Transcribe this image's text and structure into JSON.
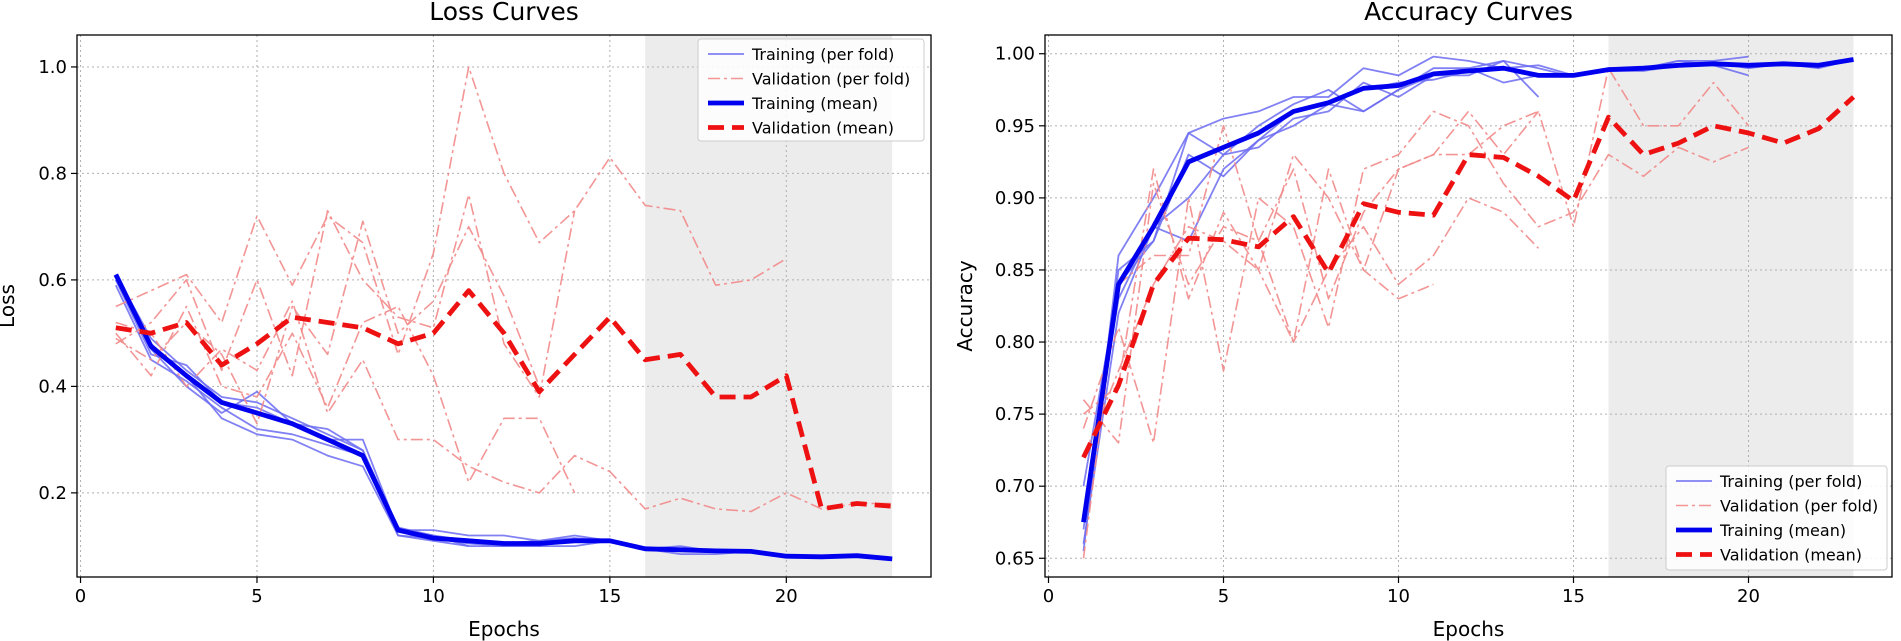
{
  "chart_data": [
    {
      "type": "line",
      "title": "Loss Curves",
      "xlabel": "Epochs",
      "ylabel": "Loss",
      "xlim": [
        -0.1,
        24.1
      ],
      "ylim": [
        0.042,
        1.06
      ],
      "xticks": [
        0,
        5,
        10,
        15,
        20
      ],
      "yticks": [
        0.2,
        0.4,
        0.6,
        0.8,
        1.0
      ],
      "ytick_format": 1,
      "grid": true,
      "legend_position": "top-right",
      "shaded_region": {
        "x": [
          16,
          23
        ],
        "color": "#ececec"
      },
      "legend": [
        "Training (per fold)",
        "Validation (per fold)",
        "Training (mean)",
        "Validation (mean)"
      ],
      "series": [
        {
          "group": "train-fold",
          "x": [
            1,
            2,
            3,
            4,
            5,
            6,
            7,
            8,
            9,
            10,
            11,
            12,
            13,
            14
          ],
          "y": [
            0.6,
            0.48,
            0.42,
            0.34,
            0.31,
            0.3,
            0.27,
            0.25,
            0.12,
            0.115,
            0.105,
            0.1,
            0.1,
            0.115
          ]
        },
        {
          "group": "train-fold",
          "x": [
            1,
            2,
            3,
            4,
            5,
            6,
            7,
            8,
            9,
            10,
            11,
            12,
            13,
            14,
            15,
            16,
            17,
            18,
            19,
            20,
            21,
            22,
            23
          ],
          "y": [
            0.61,
            0.47,
            0.4,
            0.35,
            0.39,
            0.33,
            0.3,
            0.3,
            0.13,
            0.13,
            0.12,
            0.12,
            0.11,
            0.115,
            0.11,
            0.095,
            0.085,
            0.085,
            0.09,
            0.08,
            0.08,
            0.08,
            0.075
          ]
        },
        {
          "group": "train-fold",
          "x": [
            1,
            2,
            3,
            4,
            5,
            6,
            7,
            8,
            9,
            10,
            11,
            12,
            13,
            14,
            15
          ],
          "y": [
            0.59,
            0.45,
            0.41,
            0.36,
            0.32,
            0.31,
            0.29,
            0.27,
            0.13,
            0.12,
            0.1,
            0.1,
            0.1,
            0.1,
            0.11
          ]
        },
        {
          "group": "train-fold",
          "x": [
            1,
            2,
            3,
            4,
            5,
            6,
            7,
            8,
            9,
            10,
            11,
            12,
            13,
            14,
            15,
            16,
            17,
            18,
            19
          ],
          "y": [
            0.6,
            0.46,
            0.44,
            0.37,
            0.36,
            0.33,
            0.32,
            0.28,
            0.135,
            0.12,
            0.11,
            0.105,
            0.11,
            0.12,
            0.11,
            0.095,
            0.1,
            0.09,
            0.09
          ]
        },
        {
          "group": "train-fold",
          "x": [
            1,
            2,
            3,
            4,
            5,
            6,
            7,
            8,
            9,
            10,
            11
          ],
          "y": [
            0.61,
            0.49,
            0.43,
            0.38,
            0.37,
            0.34,
            0.31,
            0.28,
            0.12,
            0.11,
            0.1
          ]
        },
        {
          "group": "val-fold",
          "x": [
            1,
            2,
            3,
            4,
            5,
            6,
            7,
            8,
            9,
            10,
            11,
            12,
            13,
            14,
            15,
            16,
            17,
            18,
            19,
            20
          ],
          "y": [
            0.55,
            0.58,
            0.61,
            0.52,
            0.72,
            0.59,
            0.72,
            0.67,
            0.46,
            0.65,
            1.0,
            0.8,
            0.67,
            0.73,
            0.83,
            0.74,
            0.73,
            0.59,
            0.6,
            0.64
          ]
        },
        {
          "group": "val-fold",
          "x": [
            1,
            2,
            3,
            4,
            5,
            6,
            7,
            8,
            9,
            10,
            11,
            12,
            13,
            14
          ],
          "y": [
            0.48,
            0.52,
            0.6,
            0.43,
            0.6,
            0.42,
            0.73,
            0.6,
            0.53,
            0.51,
            0.76,
            0.48,
            0.38,
            0.73
          ]
        },
        {
          "group": "val-fold",
          "x": [
            1,
            2,
            3,
            4,
            5,
            6,
            7,
            8,
            9,
            10,
            11,
            12,
            13,
            14,
            15,
            16,
            17,
            18,
            19,
            20,
            21,
            22,
            23
          ],
          "y": [
            0.52,
            0.5,
            0.4,
            0.47,
            0.43,
            0.56,
            0.35,
            0.45,
            0.3,
            0.3,
            0.25,
            0.22,
            0.2,
            0.27,
            0.24,
            0.17,
            0.19,
            0.17,
            0.165,
            0.2,
            0.17,
            0.18,
            0.18
          ]
        },
        {
          "group": "val-fold",
          "x": [
            1,
            2,
            3,
            4,
            5,
            6,
            7,
            8,
            9,
            10,
            11,
            12,
            13,
            14
          ],
          "y": [
            0.5,
            0.42,
            0.55,
            0.4,
            0.38,
            0.5,
            0.36,
            0.52,
            0.55,
            0.42,
            0.22,
            0.34,
            0.34,
            0.2
          ]
        },
        {
          "group": "val-fold",
          "x": [
            1,
            2,
            3,
            4,
            5,
            6,
            7,
            8,
            9,
            10,
            11,
            12,
            13
          ],
          "y": [
            0.49,
            0.45,
            0.52,
            0.46,
            0.33,
            0.55,
            0.46,
            0.71,
            0.5,
            0.56,
            0.7,
            0.57,
            0.4
          ]
        },
        {
          "group": "train-mean",
          "x": [
            1,
            2,
            3,
            4,
            5,
            6,
            7,
            8,
            9,
            10,
            11,
            12,
            13,
            14,
            15,
            16,
            17,
            18,
            19,
            20,
            21,
            22,
            23
          ],
          "y": [
            0.61,
            0.475,
            0.42,
            0.37,
            0.35,
            0.33,
            0.3,
            0.27,
            0.13,
            0.115,
            0.11,
            0.105,
            0.105,
            0.11,
            0.11,
            0.095,
            0.093,
            0.091,
            0.09,
            0.081,
            0.08,
            0.082,
            0.076
          ]
        },
        {
          "group": "val-mean",
          "x": [
            1,
            2,
            3,
            4,
            5,
            6,
            7,
            8,
            9,
            10,
            11,
            12,
            13,
            14,
            15,
            16,
            17,
            18,
            19,
            20,
            21,
            22,
            23
          ],
          "y": [
            0.51,
            0.5,
            0.52,
            0.44,
            0.48,
            0.53,
            0.52,
            0.51,
            0.48,
            0.5,
            0.58,
            0.5,
            0.39,
            0.46,
            0.53,
            0.45,
            0.46,
            0.38,
            0.38,
            0.42,
            0.17,
            0.18,
            0.175
          ]
        }
      ]
    },
    {
      "type": "line",
      "title": "Accuracy Curves",
      "xlabel": "Epochs",
      "ylabel": "Accuracy",
      "xlim": [
        -0.1,
        24.1
      ],
      "ylim": [
        0.637,
        1.013
      ],
      "xticks": [
        0,
        5,
        10,
        15,
        20
      ],
      "yticks": [
        0.65,
        0.7,
        0.75,
        0.8,
        0.85,
        0.9,
        0.95,
        1.0
      ],
      "ytick_format": 2,
      "grid": true,
      "legend_position": "bottom-right",
      "shaded_region": {
        "x": [
          16,
          23
        ],
        "color": "#ececec"
      },
      "legend": [
        "Training (per fold)",
        "Validation (per fold)",
        "Training (mean)",
        "Validation (mean)"
      ],
      "series": [
        {
          "group": "train-fold",
          "x": [
            1,
            2,
            3,
            4,
            5,
            6,
            7,
            8,
            9,
            10,
            11,
            12,
            13,
            14,
            15,
            16,
            17,
            18,
            19,
            20
          ],
          "y": [
            0.655,
            0.86,
            0.9,
            0.945,
            0.955,
            0.96,
            0.97,
            0.97,
            0.99,
            0.985,
            0.998,
            0.995,
            0.99,
            0.992,
            0.985,
            0.99,
            0.99,
            0.995,
            0.995,
            0.998
          ]
        },
        {
          "group": "train-fold",
          "x": [
            1,
            2,
            3,
            4,
            5,
            6,
            7,
            8,
            9,
            10,
            11,
            12,
            13,
            14
          ],
          "y": [
            0.68,
            0.83,
            0.88,
            0.9,
            0.93,
            0.95,
            0.965,
            0.975,
            0.96,
            0.975,
            0.985,
            0.99,
            0.995,
            0.97
          ]
        },
        {
          "group": "train-fold",
          "x": [
            1,
            2,
            3,
            4,
            5,
            6,
            7,
            8,
            9,
            10,
            11,
            12,
            13,
            14,
            15,
            16,
            17,
            18,
            19,
            20,
            21,
            22,
            23
          ],
          "y": [
            0.7,
            0.84,
            0.87,
            0.93,
            0.915,
            0.94,
            0.96,
            0.965,
            0.975,
            0.98,
            0.982,
            0.988,
            0.99,
            0.985,
            0.985,
            0.988,
            0.988,
            0.992,
            0.994,
            0.99,
            0.993,
            0.99,
            0.996
          ]
        },
        {
          "group": "train-fold",
          "x": [
            1,
            2,
            3,
            4,
            5,
            6,
            7,
            8,
            9,
            10,
            11,
            12,
            13,
            14,
            15
          ],
          "y": [
            0.67,
            0.85,
            0.87,
            0.945,
            0.93,
            0.935,
            0.955,
            0.96,
            0.98,
            0.97,
            0.985,
            0.985,
            0.995,
            0.99,
            0.984
          ]
        },
        {
          "group": "train-fold",
          "x": [
            1,
            2,
            3,
            4,
            5,
            6,
            7,
            8,
            9,
            10,
            11,
            12,
            13,
            14,
            15,
            16,
            17,
            18,
            19,
            20
          ],
          "y": [
            0.66,
            0.82,
            0.88,
            0.87,
            0.92,
            0.94,
            0.95,
            0.965,
            0.96,
            0.975,
            0.99,
            0.99,
            0.98,
            0.985,
            0.985,
            0.99,
            0.99,
            0.995,
            0.992,
            0.985
          ]
        },
        {
          "group": "val-fold",
          "x": [
            1,
            2,
            3,
            4,
            5,
            6,
            7,
            8,
            9,
            10,
            11
          ],
          "y": [
            0.75,
            0.77,
            0.92,
            0.83,
            0.89,
            0.85,
            0.8,
            0.92,
            0.85,
            0.83,
            0.84
          ]
        },
        {
          "group": "val-fold",
          "x": [
            1,
            2,
            3,
            4,
            5,
            6,
            7,
            8,
            9,
            10,
            11,
            12,
            13,
            14,
            15,
            16,
            17,
            18,
            19,
            20
          ],
          "y": [
            0.76,
            0.73,
            0.91,
            0.84,
            0.88,
            0.87,
            0.92,
            0.83,
            0.89,
            0.92,
            0.93,
            0.93,
            0.95,
            0.96,
            0.88,
            0.99,
            0.95,
            0.95,
            0.98,
            0.95
          ]
        },
        {
          "group": "val-fold",
          "x": [
            1,
            2,
            3,
            4,
            5,
            6,
            7,
            8,
            9,
            10,
            11,
            12,
            13,
            14,
            15,
            16,
            17,
            18,
            19,
            20
          ],
          "y": [
            0.74,
            0.81,
            0.73,
            0.9,
            0.78,
            0.9,
            0.88,
            0.81,
            0.92,
            0.93,
            0.96,
            0.95,
            0.91,
            0.88,
            0.89,
            0.93,
            0.915,
            0.935,
            0.925,
            0.935
          ]
        },
        {
          "group": "val-fold",
          "x": [
            1,
            2,
            3,
            4,
            5,
            6,
            7,
            8,
            9,
            10,
            11,
            12,
            13,
            14
          ],
          "y": [
            0.65,
            0.84,
            0.86,
            0.86,
            0.95,
            0.87,
            0.8,
            0.85,
            0.88,
            0.84,
            0.86,
            0.9,
            0.89,
            0.865
          ]
        },
        {
          "group": "val-fold",
          "x": [
            1,
            2,
            3,
            4,
            5,
            6,
            7,
            8,
            9,
            10,
            11,
            12,
            13,
            14
          ],
          "y": [
            0.72,
            0.78,
            0.84,
            0.88,
            0.87,
            0.85,
            0.93,
            0.9,
            0.85,
            0.92,
            0.93,
            0.96,
            0.93,
            0.96
          ]
        },
        {
          "group": "train-mean",
          "x": [
            1,
            2,
            3,
            4,
            5,
            6,
            7,
            8,
            9,
            10,
            11,
            12,
            13,
            14,
            15,
            16,
            17,
            18,
            19,
            20,
            21,
            22,
            23
          ],
          "y": [
            0.675,
            0.84,
            0.88,
            0.925,
            0.935,
            0.945,
            0.96,
            0.966,
            0.976,
            0.978,
            0.986,
            0.988,
            0.99,
            0.985,
            0.985,
            0.989,
            0.99,
            0.992,
            0.993,
            0.992,
            0.993,
            0.992,
            0.996
          ]
        },
        {
          "group": "val-mean",
          "x": [
            1,
            2,
            3,
            4,
            5,
            6,
            7,
            8,
            9,
            10,
            11,
            12,
            13,
            14,
            15,
            16,
            17,
            18,
            19,
            20,
            21,
            22,
            23
          ],
          "y": [
            0.72,
            0.77,
            0.84,
            0.872,
            0.871,
            0.866,
            0.887,
            0.848,
            0.896,
            0.89,
            0.888,
            0.93,
            0.928,
            0.915,
            0.898,
            0.956,
            0.93,
            0.938,
            0.95,
            0.945,
            0.938,
            0.948,
            0.97
          ]
        }
      ]
    }
  ],
  "colors": {
    "train_fold": "#6b6bf2",
    "val_fold": "#f28a8a",
    "train_mean": "#0000ee",
    "val_mean": "#ee1111",
    "grid": "#b0b0b0"
  }
}
